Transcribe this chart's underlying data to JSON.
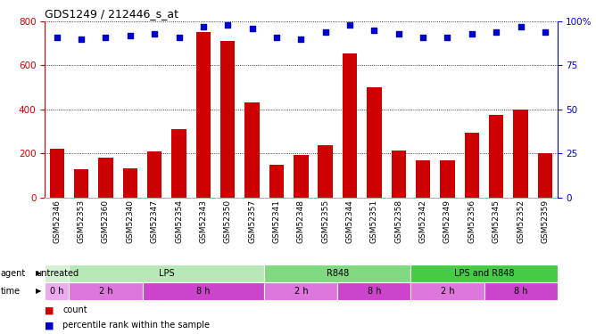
{
  "title": "GDS1249 / 212446_s_at",
  "samples": [
    "GSM52346",
    "GSM52353",
    "GSM52360",
    "GSM52340",
    "GSM52347",
    "GSM52354",
    "GSM52343",
    "GSM52350",
    "GSM52357",
    "GSM52341",
    "GSM52348",
    "GSM52355",
    "GSM52344",
    "GSM52351",
    "GSM52358",
    "GSM52342",
    "GSM52349",
    "GSM52356",
    "GSM52345",
    "GSM52352",
    "GSM52359"
  ],
  "counts": [
    220,
    130,
    180,
    135,
    210,
    310,
    750,
    710,
    430,
    150,
    195,
    240,
    655,
    500,
    215,
    170,
    170,
    295,
    375,
    400,
    200
  ],
  "percentile": [
    91,
    90,
    91,
    92,
    93,
    91,
    97,
    98,
    96,
    91,
    90,
    94,
    98,
    95,
    93,
    91,
    91,
    93,
    94,
    97,
    94
  ],
  "bar_color": "#cc0000",
  "dot_color": "#0000cc",
  "left_axis_color": "#cc0000",
  "right_axis_color": "#0000cc",
  "ylim_left": [
    0,
    800
  ],
  "ylim_right": [
    0,
    100
  ],
  "yticks_left": [
    0,
    200,
    400,
    600,
    800
  ],
  "yticks_right": [
    0,
    25,
    50,
    75,
    100
  ],
  "agent_groups": [
    {
      "label": "untreated",
      "start": 0,
      "end": 1,
      "color": "#d4f0d4"
    },
    {
      "label": "LPS",
      "start": 1,
      "end": 9,
      "color": "#b8e8b8"
    },
    {
      "label": "R848",
      "start": 9,
      "end": 15,
      "color": "#80d880"
    },
    {
      "label": "LPS and R848",
      "start": 15,
      "end": 21,
      "color": "#44cc44"
    }
  ],
  "time_groups": [
    {
      "label": "0 h",
      "start": 0,
      "end": 1,
      "color": "#eeaaee"
    },
    {
      "label": "2 h",
      "start": 1,
      "end": 4,
      "color": "#dd77dd"
    },
    {
      "label": "8 h",
      "start": 4,
      "end": 9,
      "color": "#cc44cc"
    },
    {
      "label": "2 h",
      "start": 9,
      "end": 12,
      "color": "#dd77dd"
    },
    {
      "label": "8 h",
      "start": 12,
      "end": 15,
      "color": "#cc44cc"
    },
    {
      "label": "2 h",
      "start": 15,
      "end": 18,
      "color": "#dd77dd"
    },
    {
      "label": "8 h",
      "start": 18,
      "end": 21,
      "color": "#cc44cc"
    }
  ],
  "legend_count_color": "#cc0000",
  "legend_dot_color": "#0000cc",
  "bg_color": "#ffffff",
  "grid_color": "#000000",
  "bar_width": 0.6
}
